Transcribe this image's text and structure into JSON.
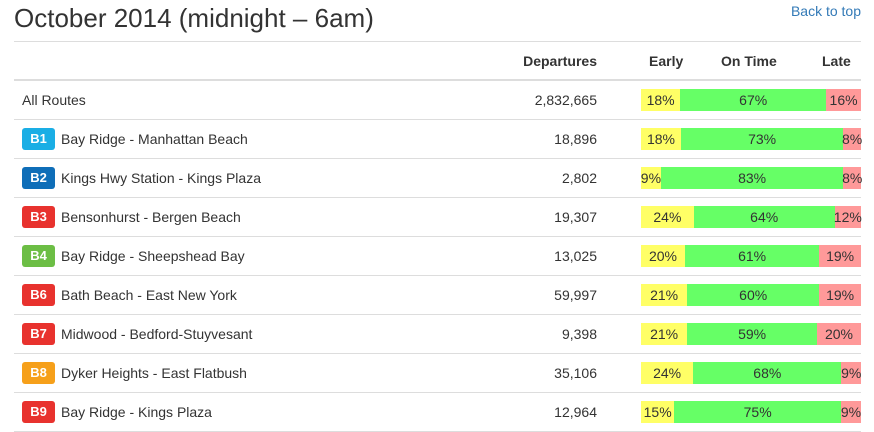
{
  "header": {
    "title": "October 2014 (midnight – 6am)",
    "back_link": "Back to top"
  },
  "columns": {
    "departures": "Departures",
    "early": "Early",
    "on_time": "On Time",
    "late": "Late"
  },
  "colors": {
    "early": "#ffff66",
    "on_time": "#66ff66",
    "late": "#ff9999"
  },
  "rows": [
    {
      "badge": "",
      "badge_color": "",
      "name": "All Routes",
      "departures": "2,832,665",
      "early": "18%",
      "on_time": "67%",
      "late": "16%",
      "early_pct": 18,
      "on_time_pct": 67,
      "late_pct": 16
    },
    {
      "badge": "B1",
      "badge_color": "#1aaee5",
      "name": "Bay Ridge - Manhattan Beach",
      "departures": "18,896",
      "early": "18%",
      "on_time": "73%",
      "late": "8%",
      "early_pct": 18,
      "on_time_pct": 73,
      "late_pct": 8
    },
    {
      "badge": "B2",
      "badge_color": "#0f6eb8",
      "name": "Kings Hwy Station - Kings Plaza",
      "departures": "2,802",
      "early": "9%",
      "on_time": "83%",
      "late": "8%",
      "early_pct": 9,
      "on_time_pct": 83,
      "late_pct": 8
    },
    {
      "badge": "B3",
      "badge_color": "#e8322e",
      "name": "Bensonhurst - Bergen Beach",
      "departures": "19,307",
      "early": "24%",
      "on_time": "64%",
      "late": "12%",
      "early_pct": 24,
      "on_time_pct": 64,
      "late_pct": 12
    },
    {
      "badge": "B4",
      "badge_color": "#6cbe45",
      "name": "Bay Ridge - Sheepshead Bay",
      "departures": "13,025",
      "early": "20%",
      "on_time": "61%",
      "late": "19%",
      "early_pct": 20,
      "on_time_pct": 61,
      "late_pct": 19
    },
    {
      "badge": "B6",
      "badge_color": "#e8322e",
      "name": "Bath Beach - East New York",
      "departures": "59,997",
      "early": "21%",
      "on_time": "60%",
      "late": "19%",
      "early_pct": 21,
      "on_time_pct": 60,
      "late_pct": 19
    },
    {
      "badge": "B7",
      "badge_color": "#e8322e",
      "name": "Midwood - Bedford-Stuyvesant",
      "departures": "9,398",
      "early": "21%",
      "on_time": "59%",
      "late": "20%",
      "early_pct": 21,
      "on_time_pct": 59,
      "late_pct": 20
    },
    {
      "badge": "B8",
      "badge_color": "#f6a01a",
      "name": "Dyker Heights - East Flatbush",
      "departures": "35,106",
      "early": "24%",
      "on_time": "68%",
      "late": "9%",
      "early_pct": 24,
      "on_time_pct": 68,
      "late_pct": 9
    },
    {
      "badge": "B9",
      "badge_color": "#e8322e",
      "name": "Bay Ridge - Kings Plaza",
      "departures": "12,964",
      "early": "15%",
      "on_time": "75%",
      "late": "9%",
      "early_pct": 15,
      "on_time_pct": 75,
      "late_pct": 9
    }
  ]
}
